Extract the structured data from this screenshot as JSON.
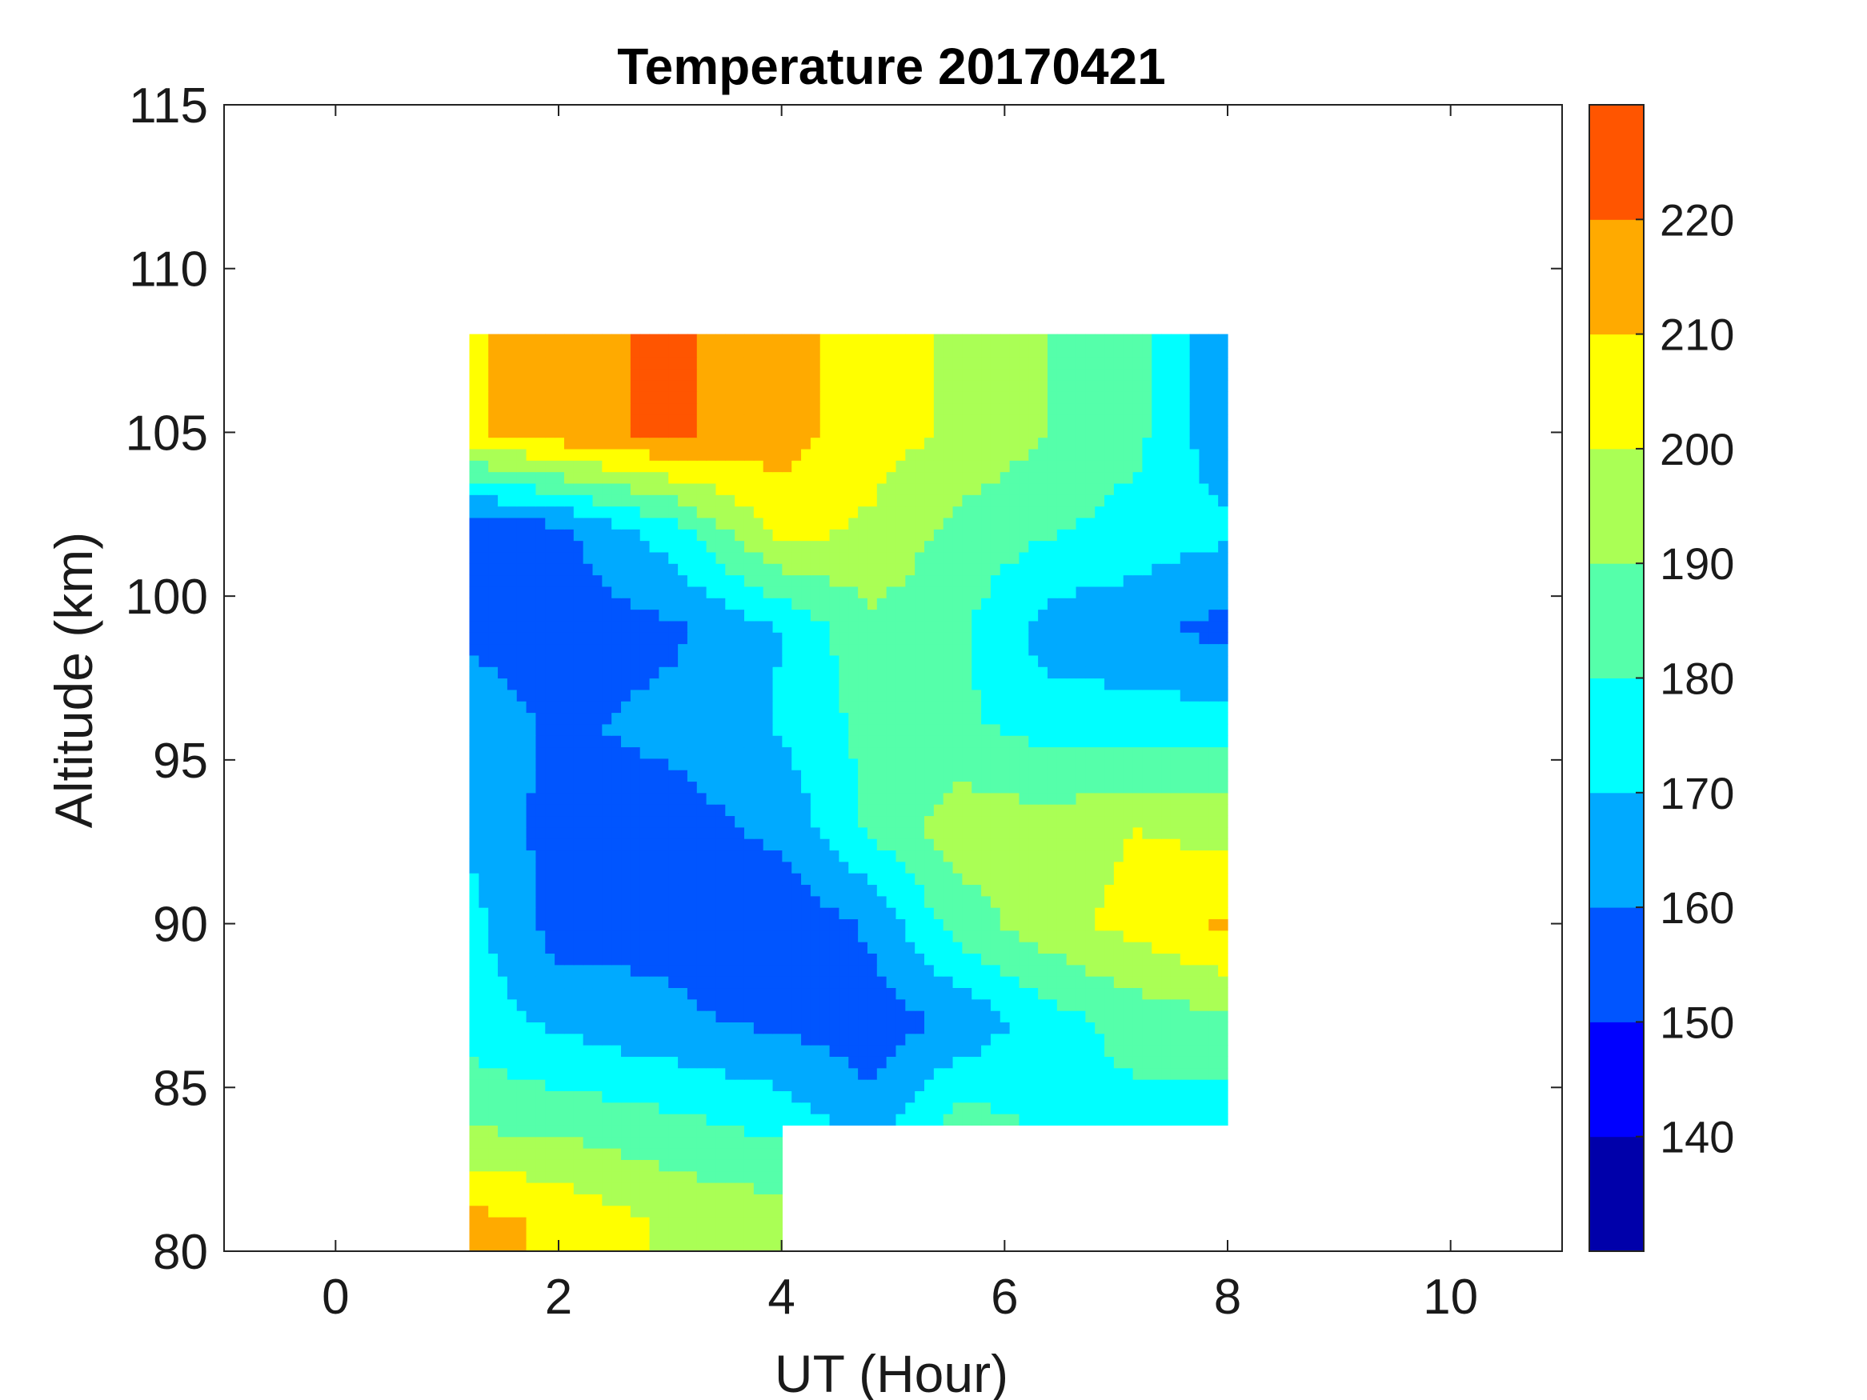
{
  "chart_data": {
    "type": "heatmap",
    "subtype": "filled-contour",
    "title": "Temperature 20170421",
    "xlabel": "UT (Hour)",
    "ylabel": "Altitude (km)",
    "xlim": [
      -1,
      11
    ],
    "ylim": [
      80,
      115
    ],
    "xticks": [
      0,
      2,
      4,
      6,
      8,
      10
    ],
    "yticks": [
      80,
      85,
      90,
      95,
      100,
      105,
      110,
      115
    ],
    "xtick_labels": [
      "0",
      "2",
      "4",
      "6",
      "8",
      "10"
    ],
    "ytick_labels": [
      "80",
      "85",
      "90",
      "95",
      "100",
      "105",
      "110",
      "115"
    ],
    "grid": false,
    "colorbar": {
      "position": "right",
      "levels": [
        130,
        140,
        150,
        160,
        170,
        180,
        190,
        200,
        210,
        220,
        230
      ],
      "ticks": [
        140,
        150,
        160,
        170,
        180,
        190,
        200,
        210,
        220
      ],
      "tick_labels": [
        "140",
        "150",
        "160",
        "170",
        "180",
        "190",
        "200",
        "210",
        "220"
      ],
      "colors": [
        "#0000aa",
        "#0000ff",
        "#0055ff",
        "#00aaff",
        "#00ffff",
        "#55ffaa",
        "#aaff55",
        "#ffff00",
        "#ffaa00",
        "#ff5500"
      ]
    },
    "data_extent": {
      "x": [
        1.2,
        8.0
      ],
      "y": [
        80,
        108
      ]
    },
    "x": [
      1.2,
      2.0,
      3.0,
      4.0,
      4.8,
      5.6,
      6.4,
      7.2,
      8.0
    ],
    "y": [
      81,
      84,
      87,
      90,
      93,
      96,
      99,
      102,
      105
    ],
    "z": [
      [
        213,
        208,
        198,
        195,
        0,
        0,
        0,
        0,
        0
      ],
      [
        188,
        186,
        182,
        176,
        164,
        184,
        178,
        177,
        174
      ],
      [
        175,
        168,
        162,
        158,
        154,
        162,
        176,
        184,
        188
      ],
      [
        174,
        155,
        157,
        152,
        162,
        185,
        196,
        204,
        212
      ],
      [
        168,
        156,
        155,
        163,
        182,
        196,
        194,
        200,
        196
      ],
      [
        166,
        158,
        163,
        171,
        183,
        182,
        176,
        174,
        176
      ],
      [
        158,
        156,
        158,
        170,
        188,
        182,
        165,
        163,
        156
      ],
      [
        150,
        157,
        175,
        204,
        198,
        187,
        181,
        176,
        172
      ],
      [
        208,
        216,
        222,
        214,
        205,
        198,
        190,
        182,
        162
      ]
    ]
  }
}
